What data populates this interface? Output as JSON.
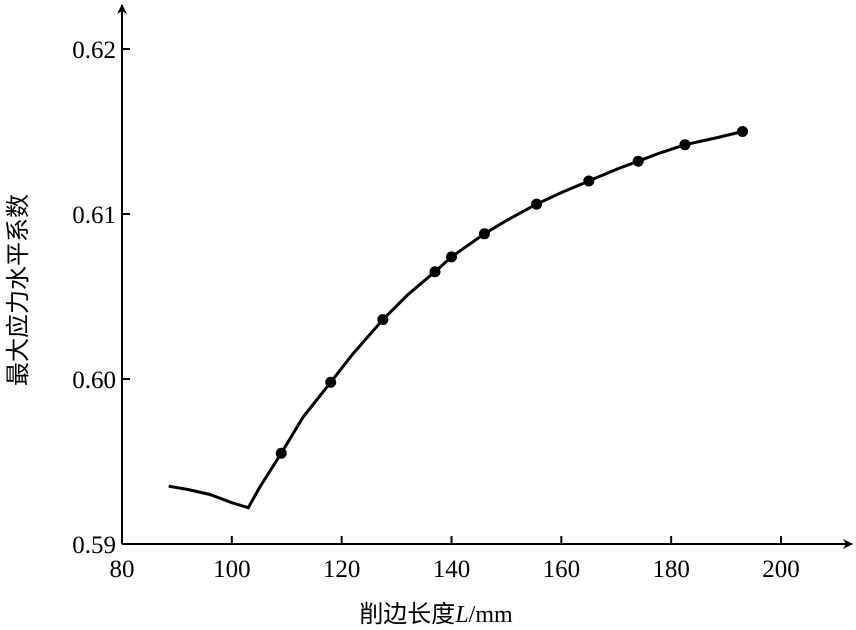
{
  "chart_data": {
    "type": "line",
    "xlabel": "削边长度",
    "xlabel_var": "L",
    "xlabel_unit": "/mm",
    "ylabel": "最大应力水平系数",
    "xlim": [
      80,
      210
    ],
    "ylim": [
      0.59,
      0.622
    ],
    "x_ticks": [
      80,
      100,
      120,
      140,
      160,
      180,
      200
    ],
    "y_ticks": [
      0.59,
      0.6,
      0.61,
      0.62
    ],
    "y_tick_labels": [
      "0.59",
      "0.60",
      "0.61",
      "0.62"
    ],
    "grid": false,
    "series": [
      {
        "curve": [
          [
            88.5,
            0.5935
          ],
          [
            92,
            0.5933
          ],
          [
            96,
            0.593
          ],
          [
            100,
            0.5925
          ],
          [
            103,
            0.5922
          ],
          [
            105,
            0.5934
          ],
          [
            109,
            0.5955
          ],
          [
            113,
            0.5977
          ],
          [
            118,
            0.5998
          ],
          [
            122,
            0.6015
          ],
          [
            127.5,
            0.6036
          ],
          [
            132,
            0.6051
          ],
          [
            137,
            0.6065
          ],
          [
            140,
            0.6074
          ],
          [
            146,
            0.6088
          ],
          [
            150,
            0.6096
          ],
          [
            155.5,
            0.6106
          ],
          [
            160,
            0.6113
          ],
          [
            165,
            0.612
          ],
          [
            170,
            0.6127
          ],
          [
            174,
            0.6132
          ],
          [
            178,
            0.6137
          ],
          [
            182.5,
            0.6142
          ],
          [
            188,
            0.6146
          ],
          [
            193,
            0.615
          ]
        ],
        "points": [
          [
            109,
            0.5955
          ],
          [
            118,
            0.5998
          ],
          [
            127.5,
            0.6036
          ],
          [
            137,
            0.6065
          ],
          [
            140,
            0.6074
          ],
          [
            146,
            0.6088
          ],
          [
            155.5,
            0.6106
          ],
          [
            165,
            0.612
          ],
          [
            174,
            0.6132
          ],
          [
            182.5,
            0.6142
          ],
          [
            193,
            0.615
          ]
        ]
      }
    ]
  }
}
